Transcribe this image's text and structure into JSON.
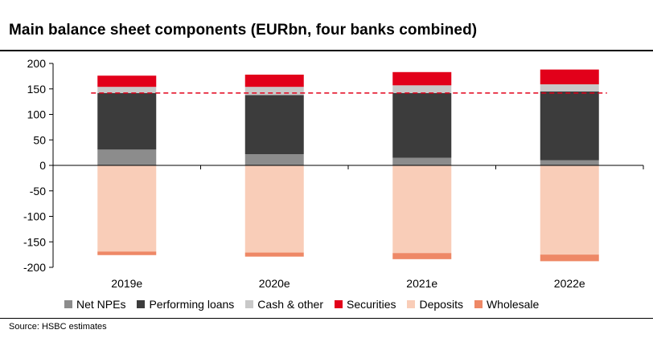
{
  "title": "Main balance sheet components (EURbn, four banks combined)",
  "source": "Source: HSBC estimates",
  "chart_data": {
    "type": "bar",
    "stacked": true,
    "categories": [
      "2019e",
      "2020e",
      "2021e",
      "2022e"
    ],
    "ylim": [
      -200,
      200
    ],
    "yticks": [
      200,
      150,
      100,
      50,
      0,
      -50,
      -100,
      -150,
      -200
    ],
    "grid": false,
    "legend_position": "bottom",
    "reference_line": {
      "value": 142,
      "color": "#e2001a",
      "style": "dashed"
    },
    "series": [
      {
        "name": "Net NPEs",
        "color": "#8c8c8c",
        "values": [
          31,
          22,
          15,
          10
        ]
      },
      {
        "name": "Performing loans",
        "color": "#3c3c3c",
        "values": [
          111,
          116,
          127,
          135
        ]
      },
      {
        "name": "Cash & other",
        "color": "#c8c8c8",
        "values": [
          12,
          16,
          15,
          14
        ]
      },
      {
        "name": "Securities",
        "color": "#e2001a",
        "values": [
          22,
          24,
          26,
          29
        ]
      },
      {
        "name": "Deposits",
        "color": "#f9cdb8",
        "values": [
          -169,
          -171,
          -172,
          -175
        ]
      },
      {
        "name": "Wholesale",
        "color": "#ee8866",
        "values": [
          -7,
          -8,
          -12,
          -13
        ]
      }
    ]
  }
}
